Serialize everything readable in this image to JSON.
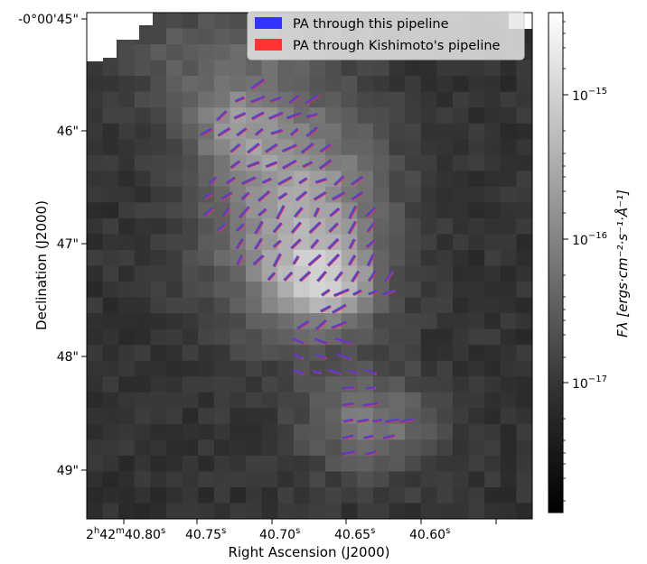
{
  "chart_data": {
    "type": "heatmap",
    "description_axes": {
      "xlabel": "Right Ascension (J2000)",
      "ylabel": "Declination (J2000)"
    },
    "x_ticks": [
      {
        "main": "2h42m40.80s",
        "h": "2",
        "m": "42",
        "s": "40.80"
      },
      {
        "main": "40.75s",
        "s": "40.75"
      },
      {
        "main": "40.70s",
        "s": "40.70"
      },
      {
        "main": "40.65s",
        "s": "40.65"
      },
      {
        "main": "40.60s",
        "s": "40.60"
      }
    ],
    "y_ticks": [
      "-0°00'45\"",
      "46\"",
      "47\"",
      "48\"",
      "49\""
    ],
    "colorbar": {
      "label": "Fλ [ergs·cm⁻²·s⁻¹·Å⁻¹]",
      "scale": "log",
      "ticks": [
        {
          "base": "10",
          "exp": "−15"
        },
        {
          "base": "10",
          "exp": "−16"
        },
        {
          "base": "10",
          "exp": "−17"
        }
      ],
      "cmap": "gray"
    },
    "legend": {
      "placement": "top-right",
      "entries": [
        {
          "label": "PA through this pipeline",
          "color": "#3333ff"
        },
        {
          "label": "PA through Kishimoto's pipeline",
          "color": "#ff3333"
        }
      ]
    },
    "series_colors": {
      "this_pipeline": "#3b3bf0",
      "kishimoto": "#e03a3a",
      "overlap": "#7a2fa8"
    }
  }
}
